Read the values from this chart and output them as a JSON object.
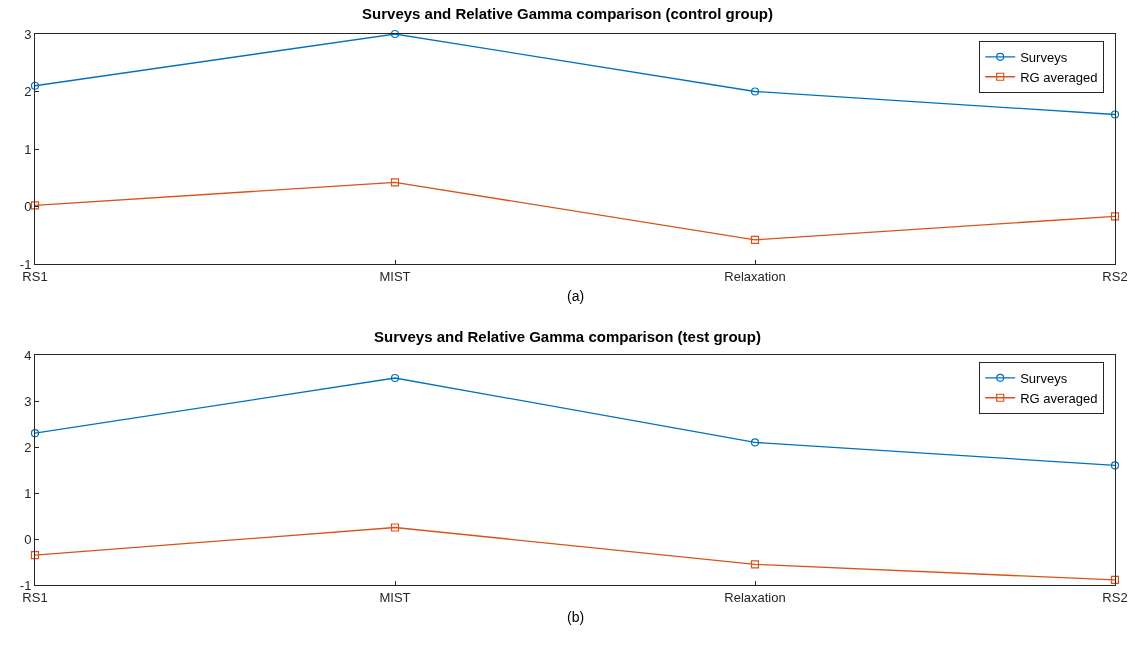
{
  "chart_data": [
    {
      "type": "line",
      "title": "Surveys and Relative Gamma comparison (control group)",
      "categories": [
        "RS1",
        "MIST",
        "Relaxation",
        "RS2"
      ],
      "series": [
        {
          "name": "Surveys",
          "color": "#0072bd",
          "marker": "circle",
          "values": [
            2.1,
            3.0,
            2.0,
            1.6
          ]
        },
        {
          "name": "RG averaged",
          "color": "#d95319",
          "marker": "square",
          "values": [
            0.02,
            0.42,
            -0.58,
            -0.17
          ]
        }
      ],
      "ylim": [
        -1,
        3
      ],
      "yticks": [
        -1,
        0,
        1,
        2,
        3
      ],
      "grid": false,
      "legend": "top right",
      "line_style": "solid",
      "annotations": [
        "(a)"
      ]
    },
    {
      "type": "line",
      "title": "Surveys and Relative Gamma comparison (test group)",
      "categories": [
        "RS1",
        "MIST",
        "Relaxation",
        "RS2"
      ],
      "series": [
        {
          "name": "Surveys",
          "color": "#0072bd",
          "marker": "circle",
          "values": [
            2.3,
            3.5,
            2.1,
            1.6
          ]
        },
        {
          "name": "RG averaged",
          "color": "#d95319",
          "marker": "square",
          "values": [
            -0.35,
            0.25,
            -0.55,
            -0.89
          ]
        }
      ],
      "ylim": [
        -1,
        4
      ],
      "yticks": [
        -1,
        0,
        1,
        2,
        3,
        4
      ],
      "grid": false,
      "legend": "top right",
      "line_style": "solid",
      "annotations": [
        "(b)"
      ]
    }
  ]
}
